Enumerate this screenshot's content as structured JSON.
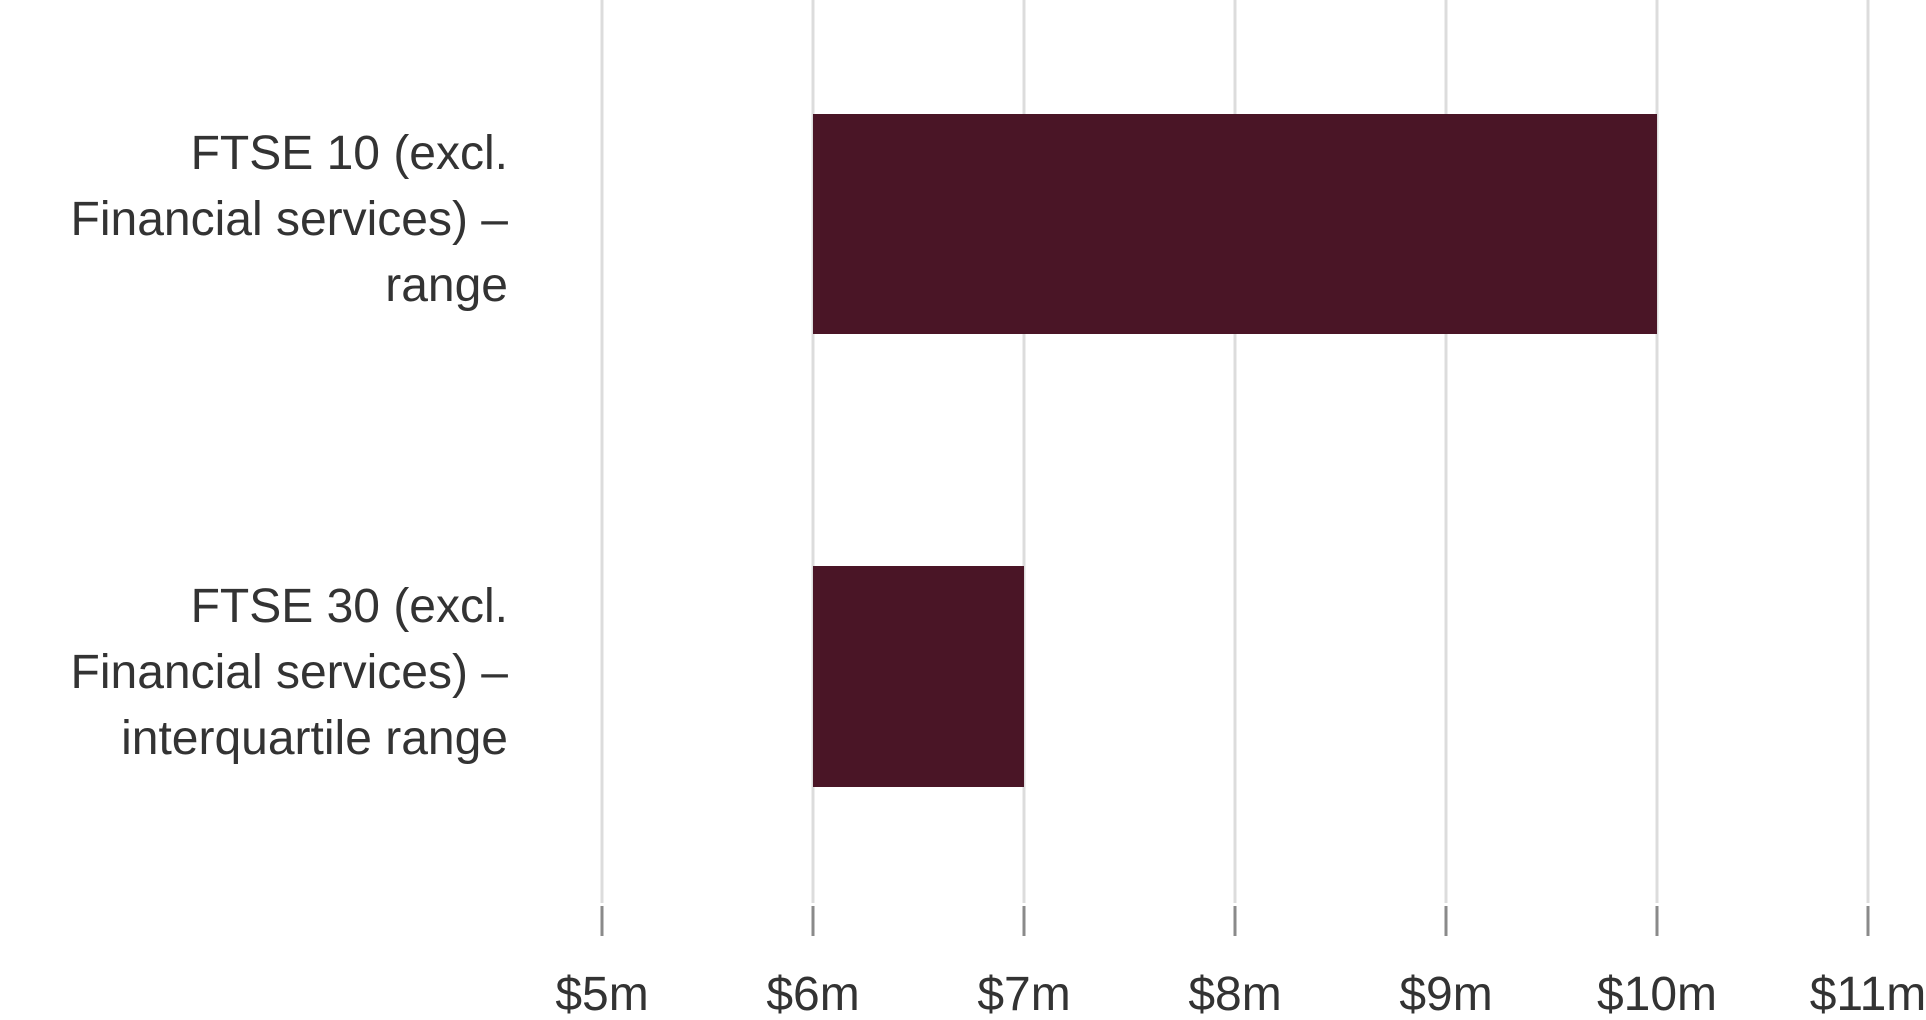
{
  "chart_data": {
    "type": "range-bar",
    "categories": [
      "FTSE 10 (excl.\nFinancial services) –\nrange",
      "FTSE 30 (excl.\nFinancial services) –\ninterquartile range"
    ],
    "low": [
      6,
      6
    ],
    "high": [
      10,
      7
    ],
    "color": "#4a1526",
    "xlim": [
      5,
      11
    ],
    "xticks": [
      {
        "value": 5,
        "label": "$5m"
      },
      {
        "value": 6,
        "label": "$6m"
      },
      {
        "value": 7,
        "label": "$7m"
      },
      {
        "value": 8,
        "label": "$8m"
      },
      {
        "value": 9,
        "label": "$9m"
      },
      {
        "value": 10,
        "label": "$10m"
      },
      {
        "value": 11,
        "label": "$11m"
      }
    ],
    "grid": true
  }
}
